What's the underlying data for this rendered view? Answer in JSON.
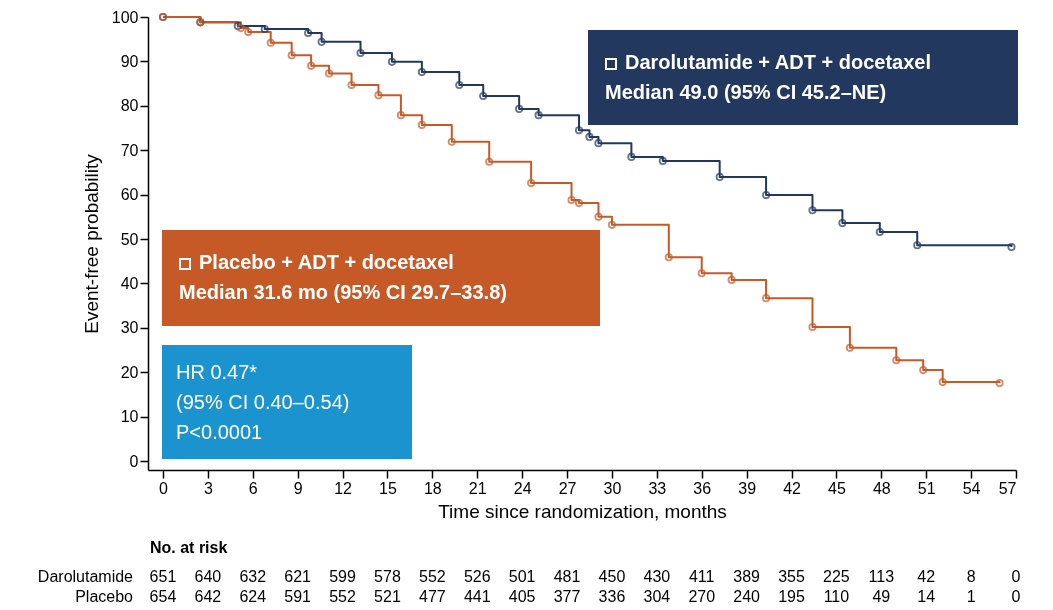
{
  "chart_data": {
    "type": "step",
    "xlabel": "Time since randomization, months",
    "ylabel": "Event-free probability",
    "xlim": [
      -1,
      57
    ],
    "ylim": [
      -2,
      100
    ],
    "xticks": [
      0,
      3,
      6,
      9,
      12,
      15,
      18,
      21,
      24,
      27,
      30,
      33,
      36,
      39,
      42,
      45,
      48,
      51,
      54,
      57
    ],
    "yticks": [
      0,
      10,
      20,
      30,
      40,
      50,
      60,
      70,
      80,
      90,
      100
    ],
    "grid": false,
    "legend": "top right",
    "marker": "circle",
    "line_style": "solid",
    "series": [
      {
        "name": "Darolutamide + ADT + docetaxel",
        "color": "#22385f",
        "x": [
          0,
          2.5,
          5,
          6.8,
          9.7,
          10.6,
          13.2,
          15.3,
          17.3,
          19.8,
          21.4,
          23.8,
          25.1,
          27.8,
          28.5,
          29.1,
          31.3,
          33.4,
          37.2,
          40.3,
          43.4,
          45.4,
          47.9,
          50.4,
          56.7
        ],
        "values": [
          100,
          98.8,
          98,
          97.3,
          96.4,
          94.4,
          91.9,
          89.9,
          87.6,
          84.7,
          82.2,
          79.3,
          77.9,
          74.5,
          73,
          71.6,
          68.5,
          67.6,
          64,
          59.9,
          56.5,
          53.6,
          51.6,
          48.6,
          48.2
        ]
      },
      {
        "name": "Placebo + ADT + docetaxel",
        "color": "#c55a27",
        "x": [
          0,
          2.5,
          5.2,
          5.7,
          7.2,
          8.6,
          9.9,
          11.1,
          12.6,
          14.4,
          15.9,
          17.3,
          19.3,
          21.8,
          24.6,
          27.3,
          27.8,
          29.1,
          30,
          33.8,
          36,
          38,
          40.3,
          43.4,
          45.9,
          49,
          50.8,
          52.1,
          55.9
        ],
        "values": [
          100,
          98.8,
          97.5,
          96.6,
          94.2,
          91.4,
          89,
          87.3,
          84.7,
          82.4,
          77.9,
          75.7,
          71.9,
          67.4,
          62.6,
          58.8,
          58.1,
          55,
          53.2,
          45.9,
          42.3,
          40.8,
          36.7,
          30.2,
          25.5,
          22.7,
          20.5,
          17.8,
          17.6
        ]
      }
    ],
    "annotations": [
      "Median 49.0 (95% CI 45.2–NE)",
      "Median 31.6 mo (95% CI 29.7–33.8)",
      "HR 0.47*",
      "(95% CI 0.40–0.54)",
      "P<0.0001",
      "No. at risk",
      "Darolutamide 651 640 632 621 599 578 552 526 501 481 450 430 411 389 355 225 113 42 8 0",
      "Placebo 654 642 624 591 552 521 477 441 405 377 336 304 270 240 195 110 49 14 1 0"
    ]
  }
}
